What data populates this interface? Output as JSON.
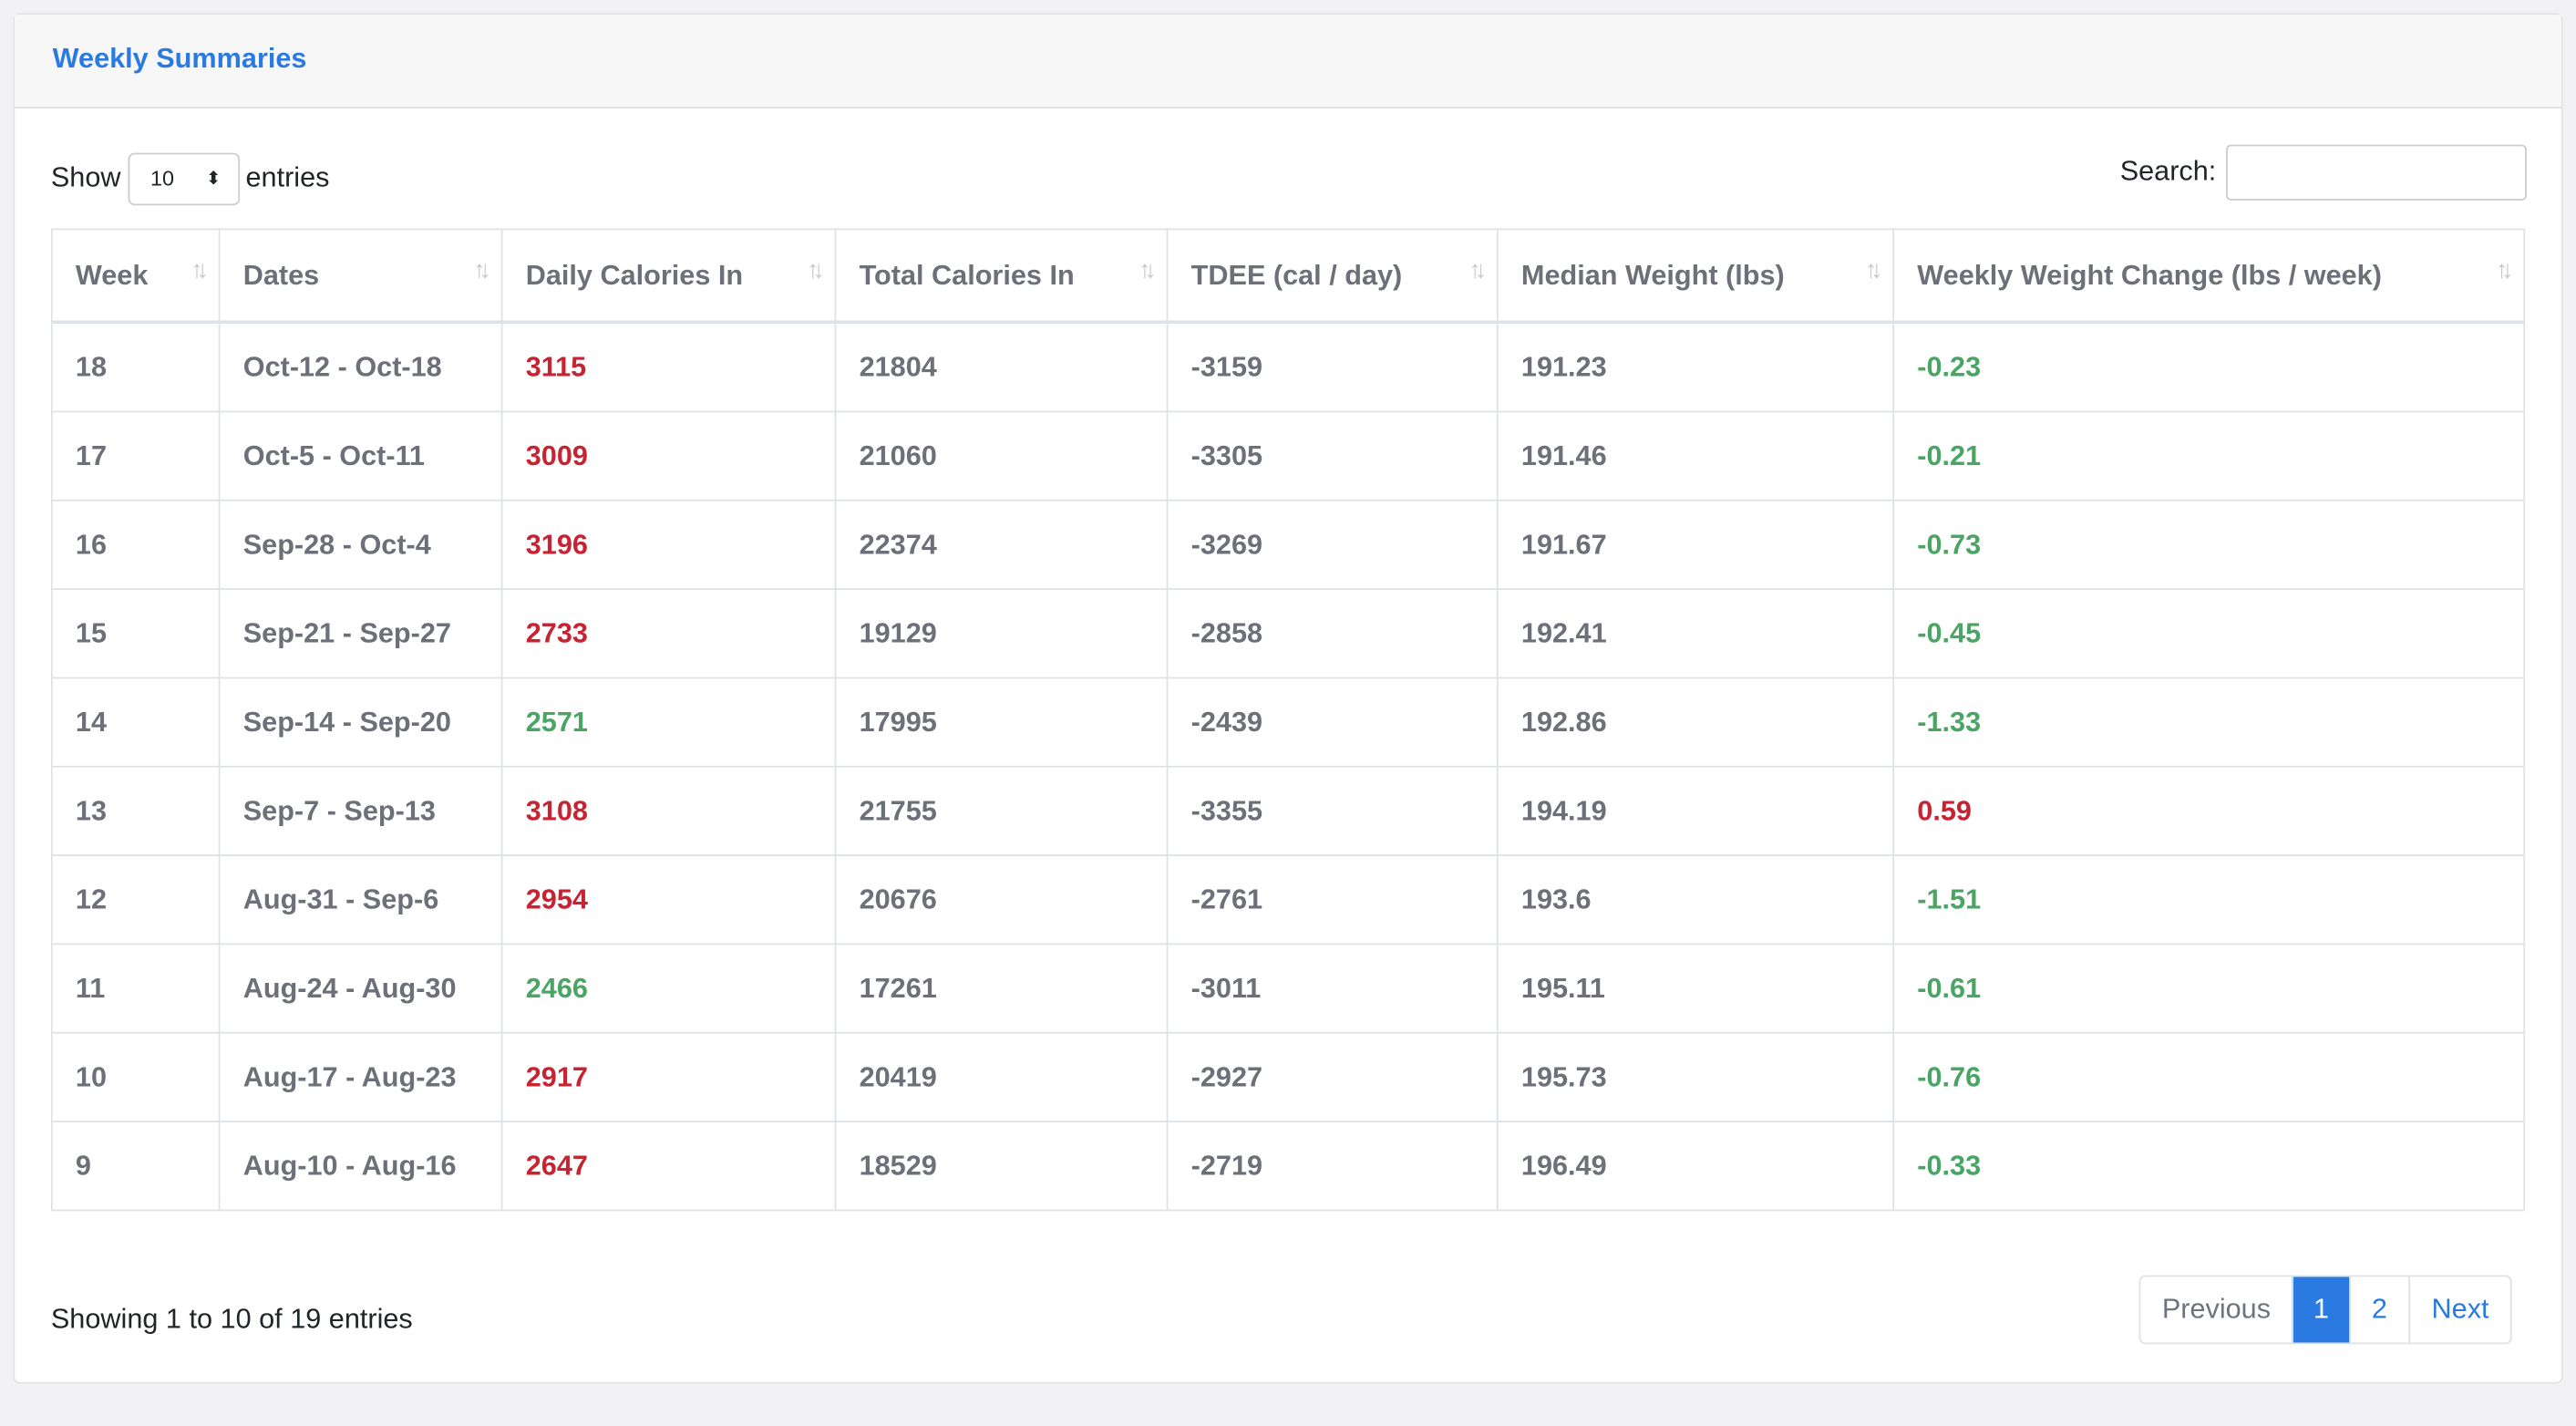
{
  "header": {
    "title": "Weekly Summaries"
  },
  "controls": {
    "show_label": "Show",
    "page_size": "10",
    "entries_label": "entries",
    "search_label": "Search:"
  },
  "table": {
    "columns": [
      "Week",
      "Dates",
      "Daily Calories In",
      "Total Calories In",
      "TDEE (cal / day)",
      "Median Weight (lbs)",
      "Weekly Weight Change (lbs / week)"
    ],
    "rows": [
      [
        "18",
        "Oct-12 - Oct-18",
        {
          "text": "3115",
          "color": "#c82333"
        },
        "21804",
        "-3159",
        "191.23",
        {
          "text": "-0.23",
          "color": "#4aa564"
        }
      ],
      [
        "17",
        "Oct-5 - Oct-11",
        {
          "text": "3009",
          "color": "#c82333"
        },
        "21060",
        "-3305",
        "191.46",
        {
          "text": "-0.21",
          "color": "#4aa564"
        }
      ],
      [
        "16",
        "Sep-28 - Oct-4",
        {
          "text": "3196",
          "color": "#c82333"
        },
        "22374",
        "-3269",
        "191.67",
        {
          "text": "-0.73",
          "color": "#4aa564"
        }
      ],
      [
        "15",
        "Sep-21 - Sep-27",
        {
          "text": "2733",
          "color": "#c82333"
        },
        "19129",
        "-2858",
        "192.41",
        {
          "text": "-0.45",
          "color": "#4aa564"
        }
      ],
      [
        "14",
        "Sep-14 - Sep-20",
        {
          "text": "2571",
          "color": "#4aa564"
        },
        "17995",
        "-2439",
        "192.86",
        {
          "text": "-1.33",
          "color": "#4aa564"
        }
      ],
      [
        "13",
        "Sep-7 - Sep-13",
        {
          "text": "3108",
          "color": "#c82333"
        },
        "21755",
        "-3355",
        "194.19",
        {
          "text": "0.59",
          "color": "#c82333"
        }
      ],
      [
        "12",
        "Aug-31 - Sep-6",
        {
          "text": "2954",
          "color": "#c82333"
        },
        "20676",
        "-2761",
        "193.6",
        {
          "text": "-1.51",
          "color": "#4aa564"
        }
      ],
      [
        "11",
        "Aug-24 - Aug-30",
        {
          "text": "2466",
          "color": "#4aa564"
        },
        "17261",
        "-3011",
        "195.11",
        {
          "text": "-0.61",
          "color": "#4aa564"
        }
      ],
      [
        "10",
        "Aug-17 - Aug-23",
        {
          "text": "2917",
          "color": "#c82333"
        },
        "20419",
        "-2927",
        "195.73",
        {
          "text": "-0.76",
          "color": "#4aa564"
        }
      ],
      [
        "9",
        "Aug-10 - Aug-16",
        {
          "text": "2647",
          "color": "#c82333"
        },
        "18529",
        "-2719",
        "196.49",
        {
          "text": "-0.33",
          "color": "#4aa564"
        }
      ]
    ]
  },
  "footer": {
    "info": "Showing 1 to 10 of 19 entries",
    "pagination": [
      "Previous",
      "1",
      "2",
      "Next"
    ],
    "active_page": "1"
  }
}
